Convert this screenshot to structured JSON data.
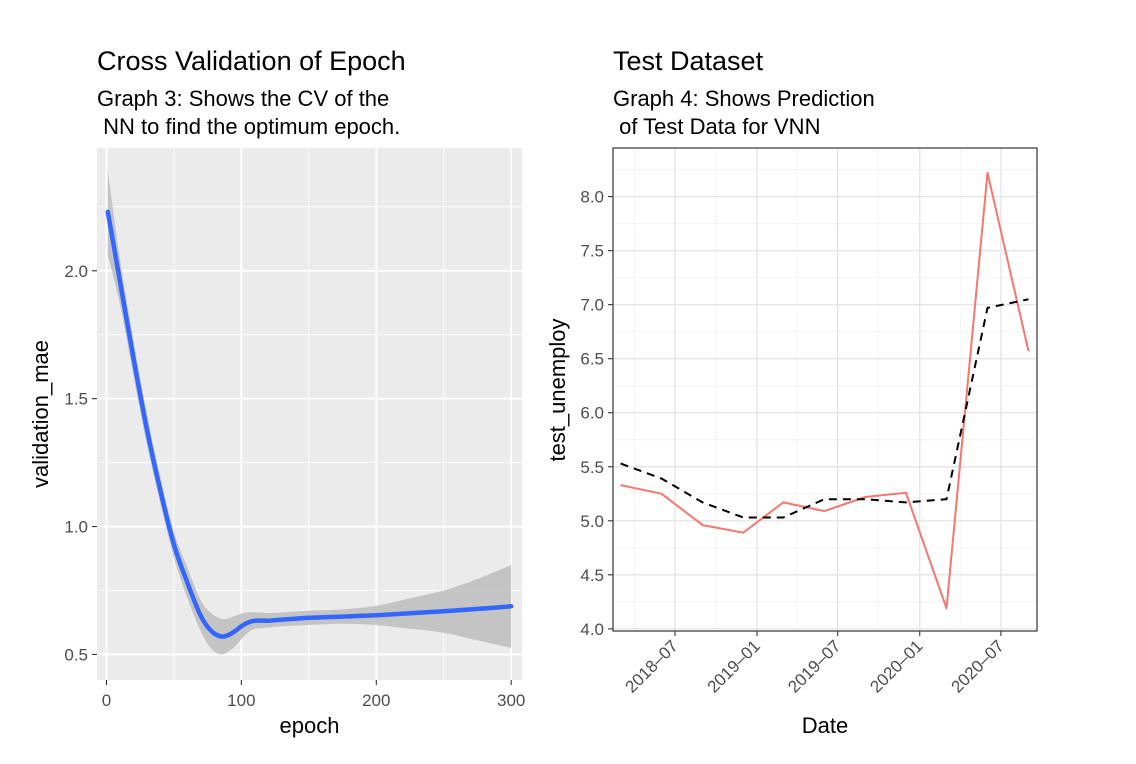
{
  "chart_data": [
    {
      "type": "line",
      "title": "Cross Validation of Epoch",
      "subtitle_lines": [
        "Graph 3: Shows the CV of the",
        " NN to find the optimum epoch."
      ],
      "xlabel": "epoch",
      "ylabel": "validation_mae",
      "xlim": [
        -7,
        308
      ],
      "ylim": [
        0.4,
        2.48
      ],
      "x_ticks": [
        0,
        100,
        200,
        300
      ],
      "x_tick_labels": [
        "0",
        "100",
        "200",
        "300"
      ],
      "y_ticks": [
        0.5,
        1.0,
        1.5,
        2.0
      ],
      "y_tick_labels": [
        "0.5",
        "1.0",
        "1.5",
        "2.0"
      ],
      "grid": true,
      "theme": "grey",
      "colors": {
        "line": "#3366ff",
        "band": "#bdbdbd",
        "panel": "#ebebeb",
        "grid": "#ffffff"
      },
      "series": [
        {
          "kind": "smooth-with-ci",
          "x": [
            1,
            10,
            20,
            30,
            40,
            50,
            60,
            70,
            78,
            85,
            90,
            95,
            100,
            105,
            110,
            120,
            130,
            150,
            175,
            200,
            225,
            250,
            275,
            300
          ],
          "y": [
            2.23,
            1.96,
            1.66,
            1.38,
            1.14,
            0.93,
            0.78,
            0.65,
            0.59,
            0.57,
            0.575,
            0.59,
            0.61,
            0.625,
            0.632,
            0.632,
            0.636,
            0.643,
            0.648,
            0.653,
            0.661,
            0.669,
            0.678,
            0.688
          ],
          "lower": [
            2.06,
            1.87,
            1.59,
            1.32,
            1.09,
            0.88,
            0.72,
            0.59,
            0.52,
            0.5,
            0.51,
            0.53,
            0.56,
            0.585,
            0.6,
            0.605,
            0.61,
            0.615,
            0.62,
            0.615,
            0.6,
            0.585,
            0.555,
            0.525
          ],
          "upper": [
            2.39,
            2.05,
            1.73,
            1.44,
            1.19,
            0.98,
            0.84,
            0.71,
            0.66,
            0.64,
            0.64,
            0.65,
            0.66,
            0.665,
            0.665,
            0.662,
            0.664,
            0.671,
            0.676,
            0.69,
            0.72,
            0.75,
            0.795,
            0.85
          ]
        }
      ]
    },
    {
      "type": "line",
      "title": "Test Dataset",
      "subtitle_lines": [
        "Graph 4: Shows Prediction",
        " of Test Data for VNN"
      ],
      "xlabel": "Date",
      "ylabel": "test_unemploy",
      "x_type": "date",
      "xlim": [
        "2018-02-12",
        "2020-09-20"
      ],
      "ylim": [
        3.98,
        8.45
      ],
      "x_ticks": [
        "2018-07-01",
        "2019-01-01",
        "2019-07-01",
        "2020-01-01",
        "2020-07-01"
      ],
      "x_tick_labels": [
        "2018–07",
        "2019–01",
        "2019–07",
        "2020–01",
        "2020–07"
      ],
      "y_ticks": [
        4.0,
        4.5,
        5.0,
        5.5,
        6.0,
        6.5,
        7.0,
        7.5,
        8.0
      ],
      "y_tick_labels": [
        "4.0",
        "4.5",
        "5.0",
        "5.5",
        "6.0",
        "6.5",
        "7.0",
        "7.5",
        "8.0"
      ],
      "grid": true,
      "theme": "bw",
      "x": [
        "2018-03-01",
        "2018-06-01",
        "2018-09-01",
        "2018-12-01",
        "2019-03-01",
        "2019-06-01",
        "2019-09-01",
        "2019-12-01",
        "2020-03-01",
        "2020-06-01",
        "2020-09-01"
      ],
      "series": [
        {
          "values": [
            5.33,
            5.25,
            4.96,
            4.89,
            5.17,
            5.09,
            5.22,
            5.26,
            4.19,
            8.22,
            6.57
          ],
          "color": "#f8766d",
          "style": "solid"
        },
        {
          "values": [
            5.53,
            5.39,
            5.17,
            5.03,
            5.03,
            5.2,
            5.2,
            5.17,
            5.2,
            6.97,
            7.05
          ],
          "color": "#000000",
          "style": "dashed"
        }
      ]
    }
  ]
}
